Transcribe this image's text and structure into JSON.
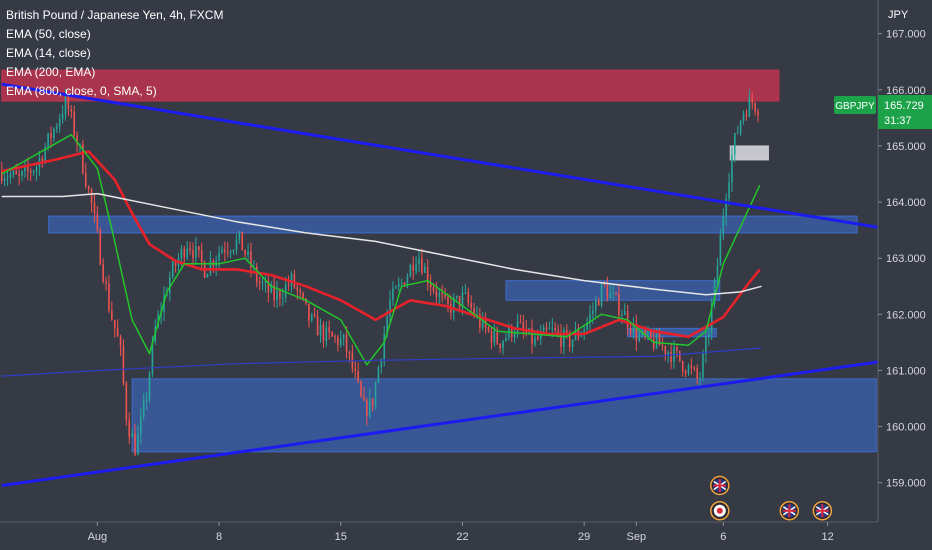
{
  "header": {
    "title": "British Pound / Japanese Yen, 4h, FXCM",
    "studies": [
      "EMA (50, close)",
      "EMA (14, close)",
      "EMA (200, EMA)",
      "EMA (800, close, 0, SMA, 5)"
    ]
  },
  "price_axis": {
    "unit": "JPY"
  },
  "chart_data": {
    "type": "candlestick",
    "title": "British Pound / Japanese Yen, 4h, FXCM",
    "symbol": "GBPJPY",
    "timeframe": "4h",
    "source": "FXCM",
    "currency": "JPY",
    "last_price": "165.729",
    "bar_countdown": "31:37",
    "ylim": [
      158.3,
      167.6
    ],
    "y_ticks": [
      "167.000",
      "166.000",
      "165.000",
      "164.000",
      "163.000",
      "162.000",
      "161.000",
      "160.000",
      "159.000"
    ],
    "x_ticks": [
      {
        "label": "Aug",
        "x": 0
      },
      {
        "label": "8",
        "x": 7
      },
      {
        "label": "15",
        "x": 14
      },
      {
        "label": "22",
        "x": 21
      },
      {
        "label": "29",
        "x": 28
      },
      {
        "label": "Sep",
        "x": 31
      },
      {
        "label": "6",
        "x": 36
      },
      {
        "label": "12",
        "x": 42
      }
    ],
    "x_range": [
      -5.6,
      44.9
    ],
    "price_path": [
      [
        -5.5,
        164.55
      ],
      [
        -4.5,
        164.4
      ],
      [
        -3.5,
        164.65
      ],
      [
        -2.5,
        165.3
      ],
      [
        -1.8,
        165.8
      ],
      [
        -1.0,
        164.9
      ],
      [
        -0.3,
        163.9
      ],
      [
        0.2,
        163.0
      ],
      [
        0.7,
        162.1
      ],
      [
        1.3,
        161.4
      ],
      [
        1.7,
        160.1
      ],
      [
        2.2,
        159.6
      ],
      [
        2.8,
        160.5
      ],
      [
        3.3,
        161.7
      ],
      [
        4.2,
        162.7
      ],
      [
        5.2,
        163.3
      ],
      [
        6.2,
        162.8
      ],
      [
        7.2,
        163.2
      ],
      [
        8.2,
        163.3
      ],
      [
        9.2,
        162.6
      ],
      [
        10.2,
        162.3
      ],
      [
        11.2,
        162.6
      ],
      [
        12.2,
        161.9
      ],
      [
        13.2,
        161.6
      ],
      [
        14.2,
        161.5
      ],
      [
        14.8,
        160.9
      ],
      [
        15.3,
        160.3
      ],
      [
        15.8,
        160.4
      ],
      [
        16.3,
        161.3
      ],
      [
        16.8,
        162.2
      ],
      [
        17.8,
        162.7
      ],
      [
        18.4,
        163.1
      ],
      [
        19.1,
        162.6
      ],
      [
        20.1,
        162.1
      ],
      [
        21.1,
        162.3
      ],
      [
        22.1,
        161.8
      ],
      [
        23.1,
        161.5
      ],
      [
        24.1,
        161.8
      ],
      [
        25.1,
        161.5
      ],
      [
        26.1,
        161.7
      ],
      [
        27.1,
        161.5
      ],
      [
        28.1,
        161.8
      ],
      [
        29.1,
        162.5
      ],
      [
        30.1,
        162.1
      ],
      [
        31.1,
        161.6
      ],
      [
        32.1,
        161.5
      ],
      [
        33.1,
        161.3
      ],
      [
        34.1,
        161.0
      ],
      [
        34.6,
        160.8
      ],
      [
        35.1,
        161.6
      ],
      [
        35.6,
        162.7
      ],
      [
        36.1,
        164.1
      ],
      [
        36.6,
        165.0
      ],
      [
        37.1,
        165.6
      ],
      [
        37.6,
        165.8
      ],
      [
        38.0,
        165.7
      ]
    ],
    "series": [
      {
        "name": "EMA (50, close)",
        "color": "#e8222b",
        "points": [
          [
            -5.5,
            164.55
          ],
          [
            -2.5,
            164.75
          ],
          [
            -0.5,
            164.9
          ],
          [
            1,
            164.4
          ],
          [
            2,
            163.8
          ],
          [
            3,
            163.25
          ],
          [
            4.5,
            162.95
          ],
          [
            6,
            162.8
          ],
          [
            8,
            162.8
          ],
          [
            10,
            162.7
          ],
          [
            12,
            162.5
          ],
          [
            14,
            162.25
          ],
          [
            16,
            161.9
          ],
          [
            18,
            162.25
          ],
          [
            20,
            162.15
          ],
          [
            22,
            161.95
          ],
          [
            24,
            161.75
          ],
          [
            26,
            161.65
          ],
          [
            28,
            161.65
          ],
          [
            30,
            161.9
          ],
          [
            32,
            161.7
          ],
          [
            34,
            161.6
          ],
          [
            36,
            161.95
          ],
          [
            37.2,
            162.45
          ],
          [
            38.1,
            162.8
          ]
        ]
      },
      {
        "name": "EMA (14, close)",
        "color": "#22c52a",
        "points": [
          [
            -5.5,
            164.5
          ],
          [
            -1.5,
            165.2
          ],
          [
            0,
            164.6
          ],
          [
            1,
            163.3
          ],
          [
            2,
            161.9
          ],
          [
            3,
            161.3
          ],
          [
            4,
            162.4
          ],
          [
            5,
            162.9
          ],
          [
            7,
            162.9
          ],
          [
            8.5,
            163.0
          ],
          [
            10,
            162.5
          ],
          [
            12,
            162.25
          ],
          [
            14,
            161.9
          ],
          [
            15.5,
            161.1
          ],
          [
            16.5,
            161.5
          ],
          [
            17.5,
            162.5
          ],
          [
            19,
            162.6
          ],
          [
            21,
            162.15
          ],
          [
            23,
            161.7
          ],
          [
            25,
            161.65
          ],
          [
            27,
            161.6
          ],
          [
            29,
            162.0
          ],
          [
            30.5,
            161.9
          ],
          [
            32,
            161.5
          ],
          [
            34,
            161.45
          ],
          [
            35,
            161.7
          ],
          [
            36,
            162.9
          ],
          [
            37.5,
            163.9
          ],
          [
            38.1,
            164.3
          ]
        ]
      },
      {
        "name": "EMA (200, EMA)",
        "color": "#e6e6e6",
        "points": [
          [
            -5.5,
            164.1
          ],
          [
            -2,
            164.1
          ],
          [
            0,
            164.15
          ],
          [
            4,
            163.9
          ],
          [
            8,
            163.65
          ],
          [
            12,
            163.45
          ],
          [
            16,
            163.3
          ],
          [
            20,
            163.05
          ],
          [
            24,
            162.8
          ],
          [
            28,
            162.6
          ],
          [
            32,
            162.45
          ],
          [
            35,
            162.35
          ],
          [
            37,
            162.4
          ],
          [
            38.2,
            162.5
          ]
        ]
      },
      {
        "name": "EMA (800, close, 0, SMA, 5)",
        "color": "#2f3ec7",
        "points": [
          [
            -5.5,
            160.9
          ],
          [
            0,
            161.0
          ],
          [
            8,
            161.12
          ],
          [
            16,
            161.18
          ],
          [
            24,
            161.22
          ],
          [
            32,
            161.25
          ],
          [
            38.2,
            161.4
          ]
        ]
      }
    ],
    "trendlines": [
      {
        "points": [
          [
            -5.5,
            166.1
          ],
          [
            44.9,
            163.55
          ]
        ],
        "color": "#1c1cf0"
      },
      {
        "points": [
          [
            -5.5,
            158.95
          ],
          [
            44.9,
            161.15
          ]
        ],
        "color": "#1c1cf0"
      }
    ],
    "zones": [
      {
        "x": [
          -5.5,
          39.2
        ],
        "y": [
          165.8,
          166.35
        ],
        "fill": "#c8324f",
        "opacity": 0.8
      },
      {
        "x": [
          -2.8,
          43.7
        ],
        "y": [
          163.45,
          163.75
        ],
        "fill": "#3d6fd6",
        "opacity": 0.55
      },
      {
        "x": [
          2.0,
          44.8
        ],
        "y": [
          159.55,
          160.85
        ],
        "fill": "#3d6fd6",
        "opacity": 0.55
      },
      {
        "x": [
          23.5,
          35.8
        ],
        "y": [
          162.25,
          162.6
        ],
        "fill": "#3d6fd6",
        "opacity": 0.55
      },
      {
        "x": [
          30.5,
          35.6
        ],
        "y": [
          161.6,
          161.75
        ],
        "fill": "#3d6fd6",
        "opacity": 0.6
      },
      {
        "x": [
          36.4,
          38.6
        ],
        "y": [
          164.75,
          165.0
        ],
        "fill": "#cfcfd4",
        "opacity": 0.95
      }
    ],
    "event_markers": [
      {
        "x": 35.8,
        "y": 158.95,
        "kind": "flag"
      },
      {
        "x": 35.8,
        "y": 158.5,
        "kind": "dot"
      },
      {
        "x": 39.8,
        "y": 158.5,
        "kind": "flag"
      },
      {
        "x": 41.7,
        "y": 158.5,
        "kind": "flag"
      }
    ],
    "colors": {
      "background": "#363a45",
      "up": "#26a69a",
      "down": "#ef5350",
      "text": "#ffffff",
      "price_tag": "#1ca34a"
    }
  }
}
